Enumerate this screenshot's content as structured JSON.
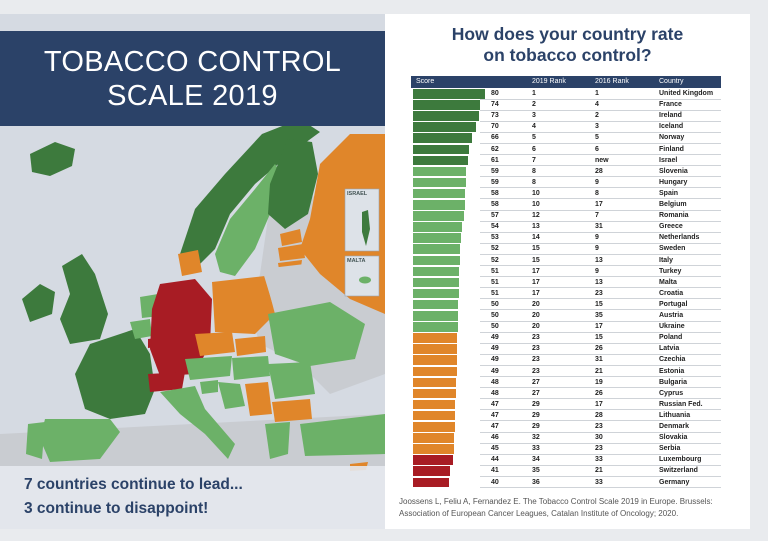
{
  "map": {
    "title_line1": "TOBACCO CONTROL",
    "title_line2": "SCALE 2019",
    "tagline_line1": "7 countries continue to lead...",
    "tagline_line2": "3 continue to disappoint!",
    "inset_israel": "ISRAEL",
    "inset_malta": "MALTA"
  },
  "colors": {
    "leader": "#3d7a3d",
    "good": "#6cb168",
    "moderate": "#e0862a",
    "disappointing": "#a81c24",
    "no_data": "#c9ccd1",
    "sea": "#d5dae2",
    "header": "#2b4268"
  },
  "chart_data": {
    "type": "table",
    "title_line1": "How does your country rate",
    "title_line2": "on tobacco control?",
    "columns": [
      "Score",
      "2019 Rank",
      "2016 Rank",
      "Country"
    ],
    "rows": [
      {
        "score": 80,
        "rank_2019": "1",
        "rank_2016": "1",
        "country": "United Kingdom",
        "group": "leader"
      },
      {
        "score": 74,
        "rank_2019": "2",
        "rank_2016": "4",
        "country": "France",
        "group": "leader"
      },
      {
        "score": 73,
        "rank_2019": "3",
        "rank_2016": "2",
        "country": "Ireland",
        "group": "leader"
      },
      {
        "score": 70,
        "rank_2019": "4",
        "rank_2016": "3",
        "country": "Iceland",
        "group": "leader"
      },
      {
        "score": 66,
        "rank_2019": "5",
        "rank_2016": "5",
        "country": "Norway",
        "group": "leader"
      },
      {
        "score": 62,
        "rank_2019": "6",
        "rank_2016": "6",
        "country": "Finland",
        "group": "leader"
      },
      {
        "score": 61,
        "rank_2019": "7",
        "rank_2016": "new",
        "country": "Israel",
        "group": "leader"
      },
      {
        "score": 59,
        "rank_2019": "8",
        "rank_2016": "28",
        "country": "Slovenia",
        "group": "good"
      },
      {
        "score": 59,
        "rank_2019": "8",
        "rank_2016": "9",
        "country": "Hungary",
        "group": "good"
      },
      {
        "score": 58,
        "rank_2019": "10",
        "rank_2016": "8",
        "country": "Spain",
        "group": "good"
      },
      {
        "score": 58,
        "rank_2019": "10",
        "rank_2016": "17",
        "country": "Belgium",
        "group": "good"
      },
      {
        "score": 57,
        "rank_2019": "12",
        "rank_2016": "7",
        "country": "Romania",
        "group": "good"
      },
      {
        "score": 54,
        "rank_2019": "13",
        "rank_2016": "31",
        "country": "Greece",
        "group": "good"
      },
      {
        "score": 53,
        "rank_2019": "14",
        "rank_2016": "9",
        "country": "Netherlands",
        "group": "good"
      },
      {
        "score": 52,
        "rank_2019": "15",
        "rank_2016": "9",
        "country": "Sweden",
        "group": "good"
      },
      {
        "score": 52,
        "rank_2019": "15",
        "rank_2016": "13",
        "country": "Italy",
        "group": "good"
      },
      {
        "score": 51,
        "rank_2019": "17",
        "rank_2016": "9",
        "country": "Turkey",
        "group": "good"
      },
      {
        "score": 51,
        "rank_2019": "17",
        "rank_2016": "13",
        "country": "Malta",
        "group": "good"
      },
      {
        "score": 51,
        "rank_2019": "17",
        "rank_2016": "23",
        "country": "Croatia",
        "group": "good"
      },
      {
        "score": 50,
        "rank_2019": "20",
        "rank_2016": "15",
        "country": "Portugal",
        "group": "good"
      },
      {
        "score": 50,
        "rank_2019": "20",
        "rank_2016": "35",
        "country": "Austria",
        "group": "good"
      },
      {
        "score": 50,
        "rank_2019": "20",
        "rank_2016": "17",
        "country": "Ukraine",
        "group": "good"
      },
      {
        "score": 49,
        "rank_2019": "23",
        "rank_2016": "15",
        "country": "Poland",
        "group": "moderate"
      },
      {
        "score": 49,
        "rank_2019": "23",
        "rank_2016": "26",
        "country": "Latvia",
        "group": "moderate"
      },
      {
        "score": 49,
        "rank_2019": "23",
        "rank_2016": "31",
        "country": "Czechia",
        "group": "moderate"
      },
      {
        "score": 49,
        "rank_2019": "23",
        "rank_2016": "21",
        "country": "Estonia",
        "group": "moderate"
      },
      {
        "score": 48,
        "rank_2019": "27",
        "rank_2016": "19",
        "country": "Bulgaria",
        "group": "moderate"
      },
      {
        "score": 48,
        "rank_2019": "27",
        "rank_2016": "26",
        "country": "Cyprus",
        "group": "moderate"
      },
      {
        "score": 47,
        "rank_2019": "29",
        "rank_2016": "17",
        "country": "Russian Fed.",
        "group": "moderate"
      },
      {
        "score": 47,
        "rank_2019": "29",
        "rank_2016": "28",
        "country": "Lithuania",
        "group": "moderate"
      },
      {
        "score": 47,
        "rank_2019": "29",
        "rank_2016": "23",
        "country": "Denmark",
        "group": "moderate"
      },
      {
        "score": 46,
        "rank_2019": "32",
        "rank_2016": "30",
        "country": "Slovakia",
        "group": "moderate"
      },
      {
        "score": 45,
        "rank_2019": "33",
        "rank_2016": "23",
        "country": "Serbia",
        "group": "moderate"
      },
      {
        "score": 44,
        "rank_2019": "34",
        "rank_2016": "33",
        "country": "Luxembourg",
        "group": "disappointing"
      },
      {
        "score": 41,
        "rank_2019": "35",
        "rank_2016": "21",
        "country": "Switzerland",
        "group": "disappointing"
      },
      {
        "score": 40,
        "rank_2019": "36",
        "rank_2016": "33",
        "country": "Germany",
        "group": "disappointing"
      }
    ]
  },
  "citation_line1": "Joossens L, Feliu A, Fernandez E. The Tobacco Control Scale 2019 in Europe. Brussels:",
  "citation_line2": "Association of European Cancer Leagues, Catalan Institute of Oncology; 2020."
}
